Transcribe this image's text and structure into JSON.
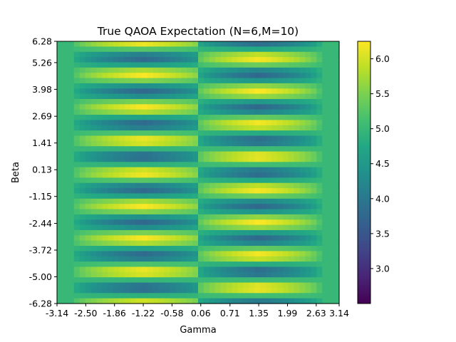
{
  "chart_data": {
    "type": "heatmap",
    "title": "True QAOA Expectation (N=6,M=10)",
    "xlabel": "Gamma",
    "ylabel": "Beta",
    "xlim": [
      -3.14,
      3.14
    ],
    "ylim": [
      -6.28,
      6.28
    ],
    "x_ticks": [
      "-3.14",
      "-2.50",
      "-1.86",
      "-1.22",
      "-0.58",
      "0.06",
      "0.71",
      "1.35",
      "1.99",
      "2.63",
      "3.14"
    ],
    "y_ticks": [
      "6.28",
      "5.26",
      "3.98",
      "2.69",
      "1.41",
      "0.13",
      "-1.15",
      "-2.44",
      "-3.72",
      "-5.00",
      "-6.28"
    ],
    "colorbar": {
      "colormap": "viridis",
      "range": [
        2.5,
        6.25
      ],
      "ticks": [
        "6.0",
        "5.5",
        "5.0",
        "4.5",
        "4.0",
        "3.5",
        "3.0"
      ]
    },
    "grid": false,
    "baseline_value": 5.0,
    "gamma_lobes": [
      {
        "gamma_center": -1.22,
        "gamma_min": -3.14,
        "gamma_max": -0.03,
        "amplitude": 1.25
      },
      {
        "gamma_center": 1.35,
        "gamma_min": 0.06,
        "gamma_max": 2.85,
        "amplitude": 1.25
      }
    ],
    "beta_stripes_per_period": 2
  }
}
